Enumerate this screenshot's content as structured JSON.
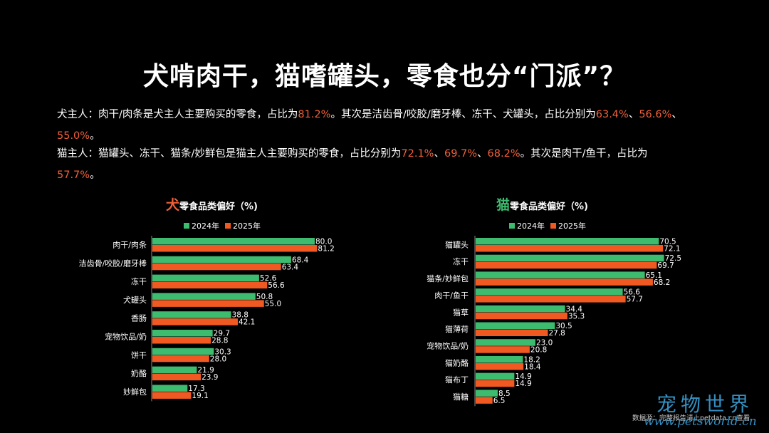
{
  "title": "犬啃肉干，猫嗜罐头，零食也分“门派”？",
  "para_dog": {
    "t1": "犬主人：肉干/肉条是犬主人主要购买的零食，占比为",
    "v1": "81.2%",
    "t2": "。其次是洁齿骨/咬胶/磨牙棒、冻干、犬罐头，占比分别为",
    "v2": "63.4%",
    "s1": "、",
    "v3": "56.6%",
    "s2": "、",
    "v4": "55.0%",
    "t3": "。"
  },
  "para_cat": {
    "t1": "猫主人：猫罐头、冻干、猫条/妙鲜包是猫主人主要购买的零食，占比分别为",
    "v1": "72.1%",
    "s1": "、",
    "v2": "69.7%",
    "s2": "、",
    "v3": "68.2%",
    "t2": "。其次是肉干/鱼干，占比为",
    "v4": "57.7%",
    "t3": "。"
  },
  "dog_chart_title": {
    "big": "犬",
    "rest": "零食品类偏好（%)"
  },
  "cat_chart_title": {
    "big": "猫",
    "rest": "零食品类偏好（%)"
  },
  "legend": {
    "s2024": "2024年",
    "s2025": "2025年"
  },
  "colors": {
    "c2024": "#3dbb6f",
    "c2025": "#f05a22",
    "highlight": "#f0603a"
  },
  "source": "数据源：完整报告请上petdata.cn查看",
  "watermark": {
    "cn": "宠物世界",
    "en": "www.petsworld.cn"
  },
  "chart_data": [
    {
      "type": "bar",
      "orientation": "horizontal",
      "title": "犬零食品类偏好（%)",
      "categories": [
        "肉干/肉条",
        "洁齿骨/咬胶/磨牙棒",
        "冻干",
        "犬罐头",
        "香肠",
        "宠物饮品/奶",
        "饼干",
        "奶酪",
        "妙鲜包"
      ],
      "series": [
        {
          "name": "2024年",
          "values": [
            80.0,
            68.4,
            52.6,
            50.8,
            38.8,
            29.7,
            30.3,
            21.9,
            17.3
          ]
        },
        {
          "name": "2025年",
          "values": [
            81.2,
            63.4,
            56.6,
            55.0,
            42.1,
            28.8,
            28.0,
            23.9,
            19.1
          ]
        }
      ],
      "legend": "top",
      "grid": false
    },
    {
      "type": "bar",
      "orientation": "horizontal",
      "title": "猫零食品类偏好（%)",
      "categories": [
        "猫罐头",
        "冻干",
        "猫条/妙鲜包",
        "肉干/鱼干",
        "猫草",
        "猫薄荷",
        "宠物饮品/奶",
        "猫奶酪",
        "猫布丁",
        "猫糖"
      ],
      "series": [
        {
          "name": "2024年",
          "values": [
            70.5,
            72.5,
            65.1,
            56.6,
            34.4,
            30.5,
            23.0,
            18.2,
            14.9,
            8.5
          ]
        },
        {
          "name": "2025年",
          "values": [
            72.1,
            69.7,
            68.2,
            57.7,
            35.3,
            27.8,
            20.8,
            18.4,
            14.9,
            6.5
          ]
        }
      ],
      "legend": "top",
      "grid": false
    }
  ]
}
